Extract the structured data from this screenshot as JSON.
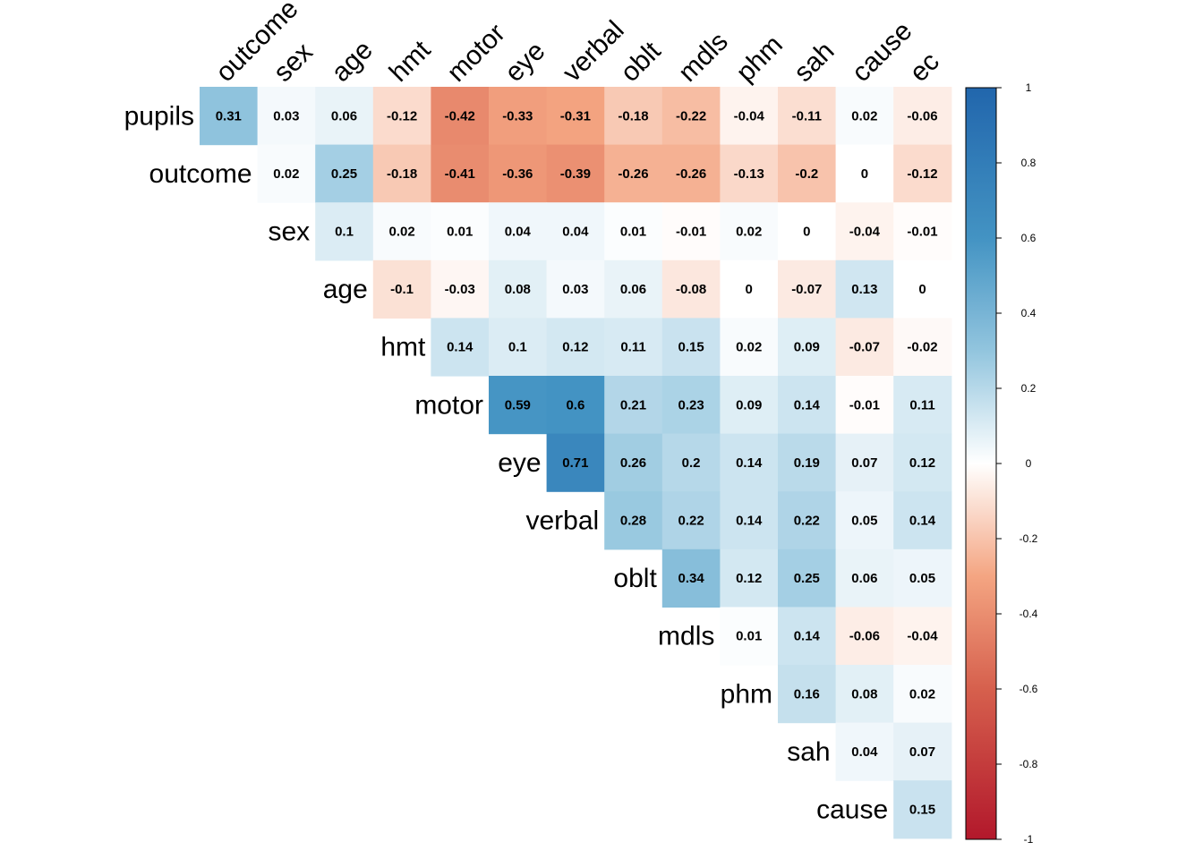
{
  "chart_data": {
    "type": "heatmap",
    "title": "",
    "shape": "upper",
    "rows": [
      "pupils",
      "outcome",
      "sex",
      "age",
      "hmt",
      "motor",
      "eye",
      "verbal",
      "oblt",
      "mdls",
      "phm",
      "sah",
      "cause"
    ],
    "columns": [
      "outcome",
      "sex",
      "age",
      "hmt",
      "motor",
      "eye",
      "verbal",
      "oblt",
      "mdls",
      "phm",
      "sah",
      "cause",
      "ec"
    ],
    "values": [
      [
        0.31,
        0.03,
        0.06,
        -0.12,
        -0.42,
        -0.33,
        -0.31,
        -0.18,
        -0.22,
        -0.04,
        -0.11,
        0.02,
        -0.06
      ],
      [
        null,
        0.02,
        0.25,
        -0.18,
        -0.41,
        -0.36,
        -0.39,
        -0.26,
        -0.26,
        -0.13,
        -0.2,
        0,
        -0.12
      ],
      [
        null,
        null,
        0.1,
        0.02,
        0.01,
        0.04,
        0.04,
        0.01,
        -0.01,
        0.02,
        0,
        -0.04,
        -0.01
      ],
      [
        null,
        null,
        null,
        -0.1,
        -0.03,
        0.08,
        0.03,
        0.06,
        -0.08,
        0,
        -0.07,
        0.13,
        0
      ],
      [
        null,
        null,
        null,
        null,
        0.14,
        0.1,
        0.12,
        0.11,
        0.15,
        0.02,
        0.09,
        -0.07,
        -0.02
      ],
      [
        null,
        null,
        null,
        null,
        null,
        0.59,
        0.6,
        0.21,
        0.23,
        0.09,
        0.14,
        -0.01,
        0.11
      ],
      [
        null,
        null,
        null,
        null,
        null,
        null,
        0.71,
        0.26,
        0.2,
        0.14,
        0.19,
        0.07,
        0.12
      ],
      [
        null,
        null,
        null,
        null,
        null,
        null,
        null,
        0.28,
        0.22,
        0.14,
        0.22,
        0.05,
        0.14
      ],
      [
        null,
        null,
        null,
        null,
        null,
        null,
        null,
        null,
        0.34,
        0.12,
        0.25,
        0.06,
        0.05
      ],
      [
        null,
        null,
        null,
        null,
        null,
        null,
        null,
        null,
        null,
        0.01,
        0.14,
        -0.06,
        -0.04
      ],
      [
        null,
        null,
        null,
        null,
        null,
        null,
        null,
        null,
        null,
        null,
        0.16,
        0.08,
        0.02
      ],
      [
        null,
        null,
        null,
        null,
        null,
        null,
        null,
        null,
        null,
        null,
        null,
        0.04,
        0.07
      ],
      [
        null,
        null,
        null,
        null,
        null,
        null,
        null,
        null,
        null,
        null,
        null,
        null,
        0.15
      ]
    ],
    "color_scale": {
      "min": -1,
      "max": 1,
      "low_color": "#B2182B",
      "mid_color": "#FFFFFF",
      "high_color": "#2166AC",
      "ticks": [
        1,
        0.8,
        0.6,
        0.4,
        0.2,
        0,
        -0.2,
        -0.4,
        -0.6,
        -0.8,
        -1
      ]
    }
  }
}
